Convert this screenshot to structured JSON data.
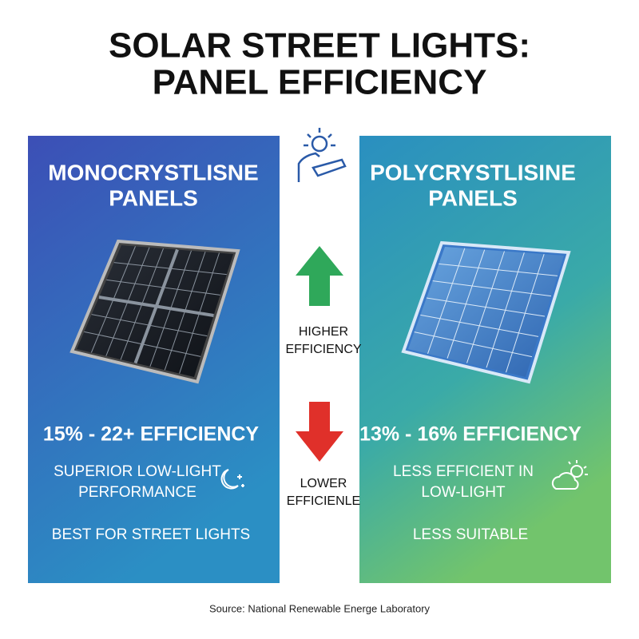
{
  "title": [
    "SOLAR STREET LIGHTS:",
    "PANEL EFFICIENCY"
  ],
  "panels": [
    {
      "heading": [
        "MONOCRYSTLISNE",
        "PANELS"
      ],
      "efficiency": "15% - 22+ EFFICIENCY",
      "low_light": [
        "SUPERIOR LOW-LIGHT",
        "PERFORMANCE"
      ],
      "suitability": "BEST FOR STREET LIGHTS"
    },
    {
      "heading": [
        "POLYCRYSTLISINE",
        "PANELS"
      ],
      "efficiency": "13% - 16% EFFICIENCY",
      "low_light": [
        "LESS EFFICIENT IN",
        "LOW-LIGHT"
      ],
      "suitability": "LESS SUITABLE"
    }
  ],
  "middle": {
    "higher": [
      "HIGHER",
      "EFFICIENCY"
    ],
    "lower": [
      "LOWER",
      "EFFICIENLE"
    ]
  },
  "source": "Source: National Renewable Energe Laboratory"
}
